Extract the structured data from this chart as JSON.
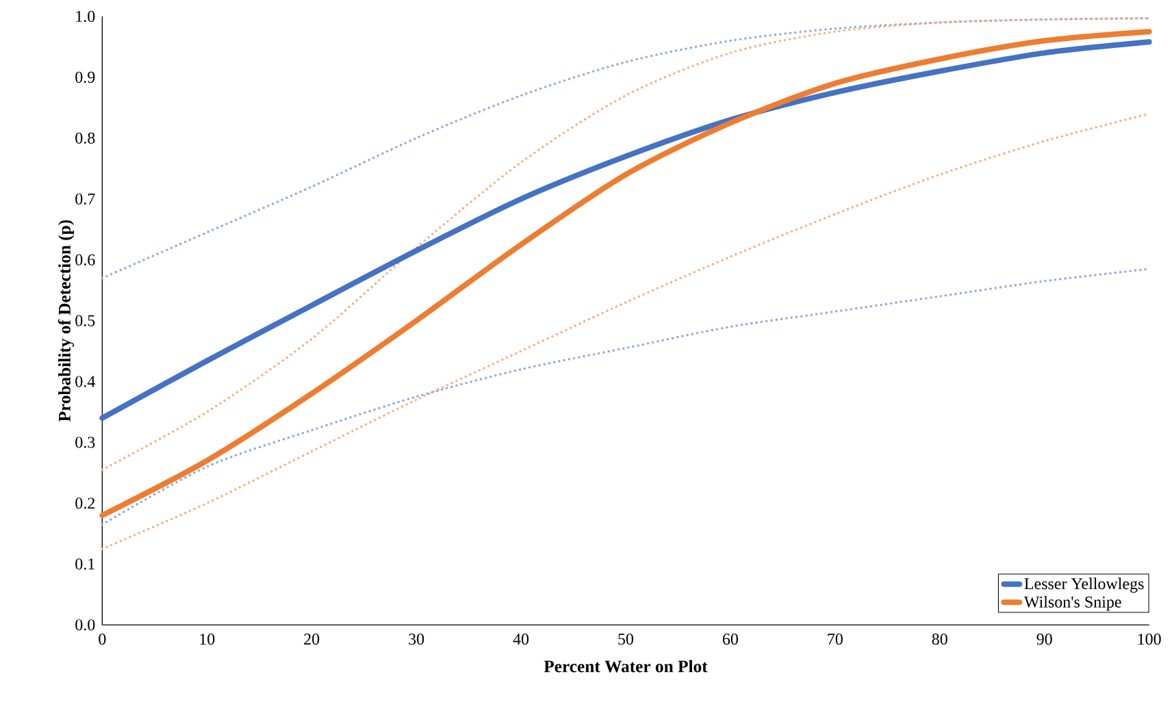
{
  "chart_data": {
    "type": "line",
    "xlabel": "Percent Water on Plot",
    "ylabel": "Probability of Detection (p)",
    "x": [
      0,
      10,
      20,
      30,
      40,
      50,
      60,
      70,
      80,
      90,
      100
    ],
    "xlim": [
      0,
      100
    ],
    "xticks": [
      0,
      10,
      20,
      30,
      40,
      50,
      60,
      70,
      80,
      90,
      100
    ],
    "ylim": [
      0,
      1
    ],
    "yticks": [
      {
        "value": 0,
        "label": "0.0"
      },
      {
        "value": 0.1,
        "label": "0.1"
      },
      {
        "value": 0.2,
        "label": "0.2"
      },
      {
        "value": 0.3,
        "label": "0.3"
      },
      {
        "value": 0.4,
        "label": "0.4"
      },
      {
        "value": 0.5,
        "label": "0.5"
      },
      {
        "value": 0.6,
        "label": "0.6"
      },
      {
        "value": 0.7,
        "label": "0.7"
      },
      {
        "value": 0.8,
        "label": "0.8"
      },
      {
        "value": 0.9,
        "label": "0.9"
      },
      {
        "value": 1,
        "label": "1.0"
      }
    ],
    "grid": false,
    "legend": "bottom right",
    "marker": "none",
    "series": [
      {
        "color": "#8faadc",
        "line_style": "dotted",
        "values": [
          0.57,
          0.645,
          0.72,
          0.8,
          0.87,
          0.925,
          0.96,
          0.98,
          0.99,
          0.995,
          0.997
        ]
      },
      {
        "color": "#8faadc",
        "line_style": "dotted",
        "values": [
          0.165,
          0.26,
          0.32,
          0.375,
          0.42,
          0.455,
          0.49,
          0.515,
          0.54,
          0.565,
          0.585
        ]
      },
      {
        "color": "#f4b183",
        "line_style": "dotted",
        "values": [
          0.255,
          0.35,
          0.47,
          0.62,
          0.76,
          0.87,
          0.94,
          0.975,
          0.99,
          0.995,
          0.997
        ]
      },
      {
        "color": "#f4b183",
        "line_style": "dotted",
        "values": [
          0.125,
          0.2,
          0.285,
          0.37,
          0.45,
          0.53,
          0.605,
          0.675,
          0.74,
          0.795,
          0.84
        ]
      },
      {
        "name": "Lesser Yellowlegs",
        "color": "#4472c4",
        "line_style": "solid",
        "values": [
          0.34,
          0.434,
          0.525,
          0.615,
          0.7,
          0.77,
          0.83,
          0.875,
          0.91,
          0.94,
          0.958
        ]
      },
      {
        "name": "Wilson's Snipe",
        "color": "#ed7d31",
        "line_style": "solid",
        "values": [
          0.18,
          0.27,
          0.38,
          0.5,
          0.625,
          0.74,
          0.825,
          0.89,
          0.93,
          0.96,
          0.975
        ]
      }
    ]
  }
}
